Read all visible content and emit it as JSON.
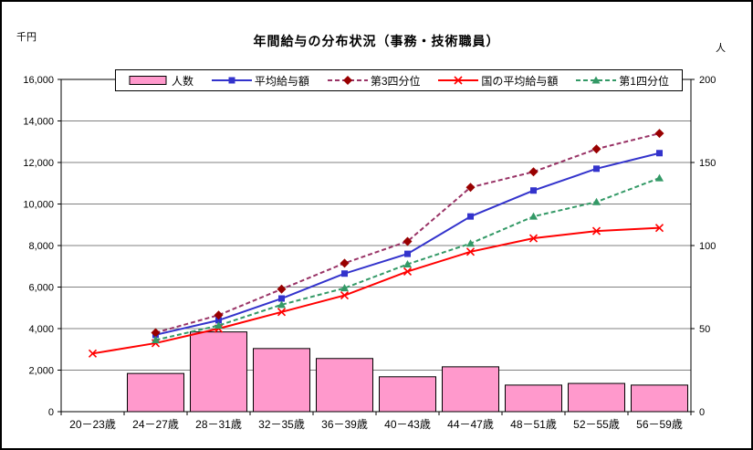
{
  "header": {
    "title": "年間給与の分布状況（事務・技術職員）",
    "left_axis_unit": "千円",
    "right_axis_unit": "人"
  },
  "chart_data": {
    "type": "bar+line combo",
    "title": "年間給与の分布状況（事務・技術職員）",
    "grid_color": "#808080",
    "axis_color": "#000000",
    "categories": [
      "20－23歳",
      "24－27歳",
      "28－31歳",
      "32－35歳",
      "36－39歳",
      "40－43歳",
      "44－47歳",
      "48－51歳",
      "52－55歳",
      "56－59歳"
    ],
    "left_axis": {
      "unit": "千円",
      "min": 0,
      "max": 16000,
      "tick_step": 2000,
      "tick_labels": [
        "0",
        "2,000",
        "4,000",
        "6,000",
        "8,000",
        "10,000",
        "12,000",
        "14,000",
        "16,000"
      ]
    },
    "right_axis": {
      "unit": "人",
      "min": 0,
      "max": 200,
      "tick_step": 50,
      "tick_labels": [
        "0",
        "50",
        "100",
        "150",
        "200"
      ]
    },
    "bar_series": {
      "id": "headcount",
      "name": "人数",
      "axis": "right",
      "fill": "#FF99CC",
      "stroke": "#000000",
      "values": [
        null,
        23,
        48,
        38,
        32,
        21,
        27,
        16,
        17,
        16
      ]
    },
    "line_series": [
      {
        "id": "average-salary",
        "name": "平均給与額",
        "axis": "left",
        "color": "#3333CC",
        "style": "solid",
        "marker": "square",
        "values": [
          null,
          3700,
          4400,
          5450,
          6650,
          7600,
          9400,
          10650,
          11700,
          12450
        ]
      },
      {
        "id": "third-quartile",
        "name": "第3四分位",
        "axis": "left",
        "color": "#993366",
        "marker_color": "#990000",
        "style": "dashed",
        "marker": "diamond",
        "values": [
          null,
          3800,
          4650,
          5900,
          7150,
          8200,
          10800,
          11550,
          12650,
          13400
        ]
      },
      {
        "id": "national-average-salary",
        "name": "国の平均給与額",
        "axis": "left",
        "color": "#FF0000",
        "style": "solid",
        "marker": "x",
        "values": [
          2800,
          3300,
          4000,
          4800,
          5600,
          6750,
          7700,
          8350,
          8700,
          8850
        ]
      },
      {
        "id": "first-quartile",
        "name": "第1四分位",
        "axis": "left",
        "color": "#339966",
        "style": "dashed",
        "marker": "triangle",
        "values": [
          null,
          3450,
          4150,
          5150,
          5950,
          7100,
          8100,
          9400,
          10100,
          11250
        ]
      }
    ]
  }
}
